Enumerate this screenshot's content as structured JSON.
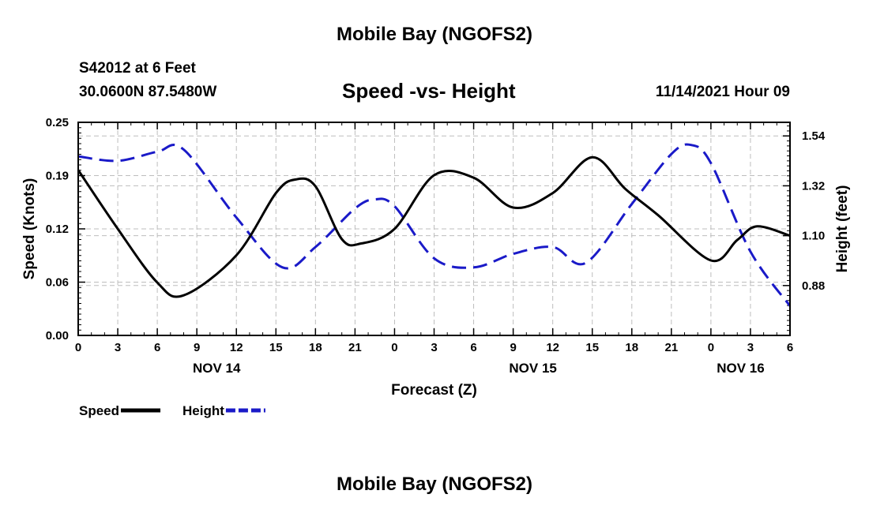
{
  "header": {
    "title": "Mobile Bay (NGOFS2)",
    "station": "S42012 at 6 Feet",
    "location": "30.0600N  87.5480W",
    "subtitle": "Speed -vs- Height",
    "datetime": "11/14/2021 Hour 09"
  },
  "footer": {
    "title": "Mobile Bay (NGOFS2)"
  },
  "chart_data": {
    "type": "line",
    "title": "Speed -vs- Height",
    "xlabel": "Forecast (Z)",
    "ylabel_left": "Speed (Knots)",
    "ylabel_right": "Height (feet)",
    "x_ticks": [
      "0",
      "3",
      "6",
      "9",
      "12",
      "15",
      "18",
      "21",
      "0",
      "3",
      "6",
      "9",
      "12",
      "15",
      "18",
      "21",
      "0",
      "3",
      "6"
    ],
    "date_labels": [
      {
        "label": "NOV 14",
        "tick_index": 3.5
      },
      {
        "label": "NOV 15",
        "tick_index": 11.5
      },
      {
        "label": "NOV 16",
        "tick_index": 16.75
      }
    ],
    "xlim_hours": [
      0,
      54
    ],
    "left_axis": {
      "ylim": [
        0,
        0.25
      ],
      "ticks": [
        "0.00",
        "0.06",
        "0.12",
        "0.19",
        "0.25"
      ],
      "tick_values": [
        0,
        0.0625,
        0.125,
        0.1875,
        0.25
      ]
    },
    "right_axis": {
      "ylim": [
        0.66,
        1.6
      ],
      "ticks": [
        "0.88",
        "1.10",
        "1.32",
        "1.54"
      ],
      "tick_values": [
        0.88,
        1.1,
        1.32,
        1.54
      ]
    },
    "grid": true,
    "legend_position": "bottom-left",
    "series": [
      {
        "name": "Speed",
        "axis": "left",
        "color": "#000000",
        "dash": "solid",
        "x_hours": [
          0,
          3,
          6,
          8,
          12,
          15,
          16.5,
          18,
          20,
          21.5,
          24,
          27,
          30,
          33,
          36,
          39,
          41.5,
          44,
          48,
          50,
          51.5,
          54
        ],
        "values": [
          0.194,
          0.125,
          0.062,
          0.047,
          0.094,
          0.167,
          0.183,
          0.175,
          0.113,
          0.108,
          0.125,
          0.188,
          0.185,
          0.15,
          0.167,
          0.209,
          0.172,
          0.141,
          0.088,
          0.112,
          0.128,
          0.117
        ]
      },
      {
        "name": "Height",
        "axis": "right",
        "color": "#1a1ac8",
        "dash": "dashed",
        "x_hours": [
          0,
          3,
          6,
          8,
          12,
          15.5,
          18,
          21,
          22.5,
          24,
          27,
          30,
          33,
          36,
          38.5,
          42,
          45,
          46.5,
          48,
          51,
          54
        ],
        "values": [
          1.45,
          1.43,
          1.47,
          1.48,
          1.18,
          0.96,
          1.05,
          1.22,
          1.26,
          1.23,
          1.0,
          0.96,
          1.02,
          1.05,
          0.98,
          1.24,
          1.46,
          1.5,
          1.42,
          1.03,
          0.79
        ]
      }
    ]
  }
}
